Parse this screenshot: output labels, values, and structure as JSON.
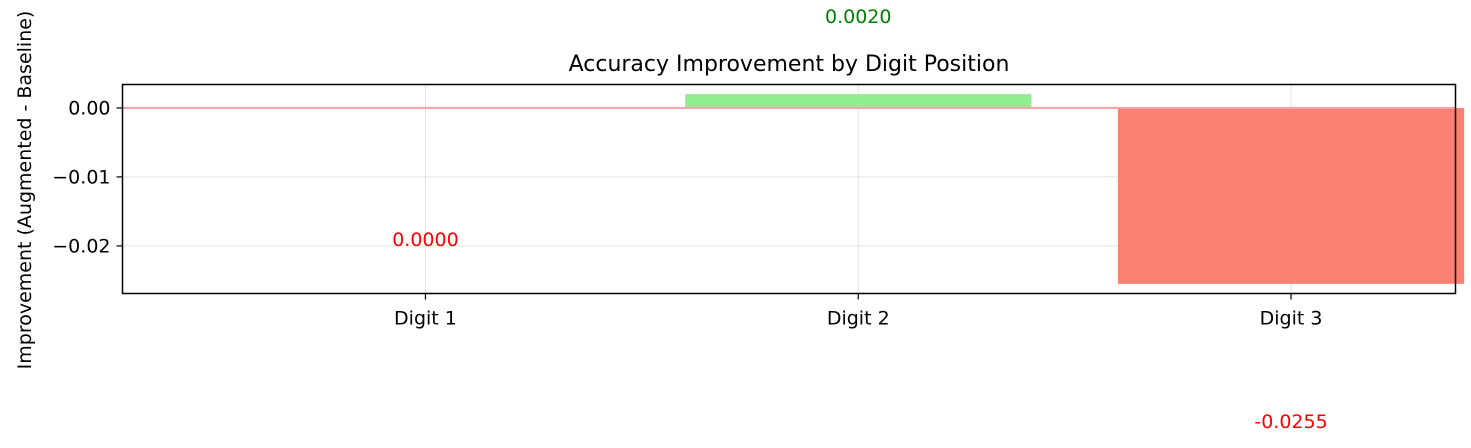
{
  "chart_data": {
    "type": "bar",
    "title": "Accuracy Improvement by Digit Position",
    "ylabel": "Improvement (Augmented - Baseline)",
    "xlabel": "",
    "categories": [
      "Digit 1",
      "Digit 2",
      "Digit 3"
    ],
    "values": [
      0.0,
      0.002,
      -0.0255
    ],
    "data_labels": [
      "0.0000",
      "0.0020",
      "-0.0255"
    ],
    "data_label_colors": [
      "#ff0000",
      "#008000",
      "#ff0000"
    ],
    "bar_colors": [
      "#90ee90",
      "#90ee90",
      "#fa8072"
    ],
    "ylim": [
      -0.0269,
      0.0034
    ],
    "yticks": [
      0.0,
      -0.01,
      -0.02
    ],
    "ytick_labels": [
      "0.00",
      "−0.01",
      "−0.02"
    ],
    "reference_line": {
      "y": 0.0,
      "color": "#f4a3a8"
    },
    "grid": true,
    "legend": "none"
  }
}
